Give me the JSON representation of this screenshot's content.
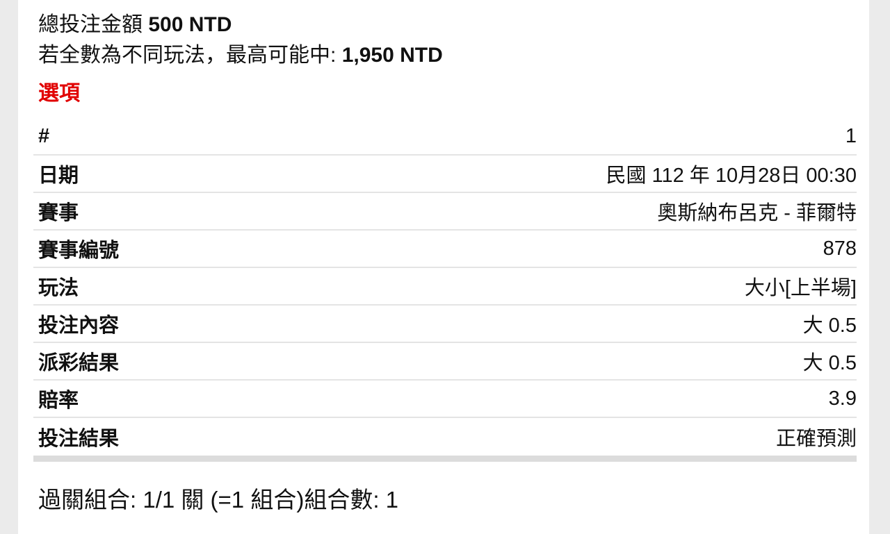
{
  "colors": {
    "heading_red": "#e10000",
    "page_bg": "#ebebeb",
    "divider": "#e4e4e4",
    "thick_divider": "#dcdcdc"
  },
  "summary": {
    "total_label": "總投注金額",
    "total_value": "500 NTD",
    "max_win_label": "若全數為不同玩法，最高可能中:",
    "max_win_value": "1,950 NTD"
  },
  "options_heading": "選項",
  "table": {
    "rows": [
      {
        "label": "#",
        "value": "1"
      },
      {
        "label": "日期",
        "value": "民國 112 年 10月28日 00:30"
      },
      {
        "label": "賽事",
        "value": "奧斯納布呂克 - 菲爾特"
      },
      {
        "label": "賽事編號",
        "value": "878"
      },
      {
        "label": "玩法",
        "value": "大小[上半場]"
      },
      {
        "label": "投注內容",
        "value": "大 0.5"
      },
      {
        "label": "派彩結果",
        "value": "大 0.5"
      },
      {
        "label": "賠率",
        "value": "3.9"
      },
      {
        "label": "投注結果",
        "value": "正確預測"
      }
    ]
  },
  "footer": {
    "combo_text": "過關組合: 1/1 關 (=1 組合)組合數: 1"
  }
}
